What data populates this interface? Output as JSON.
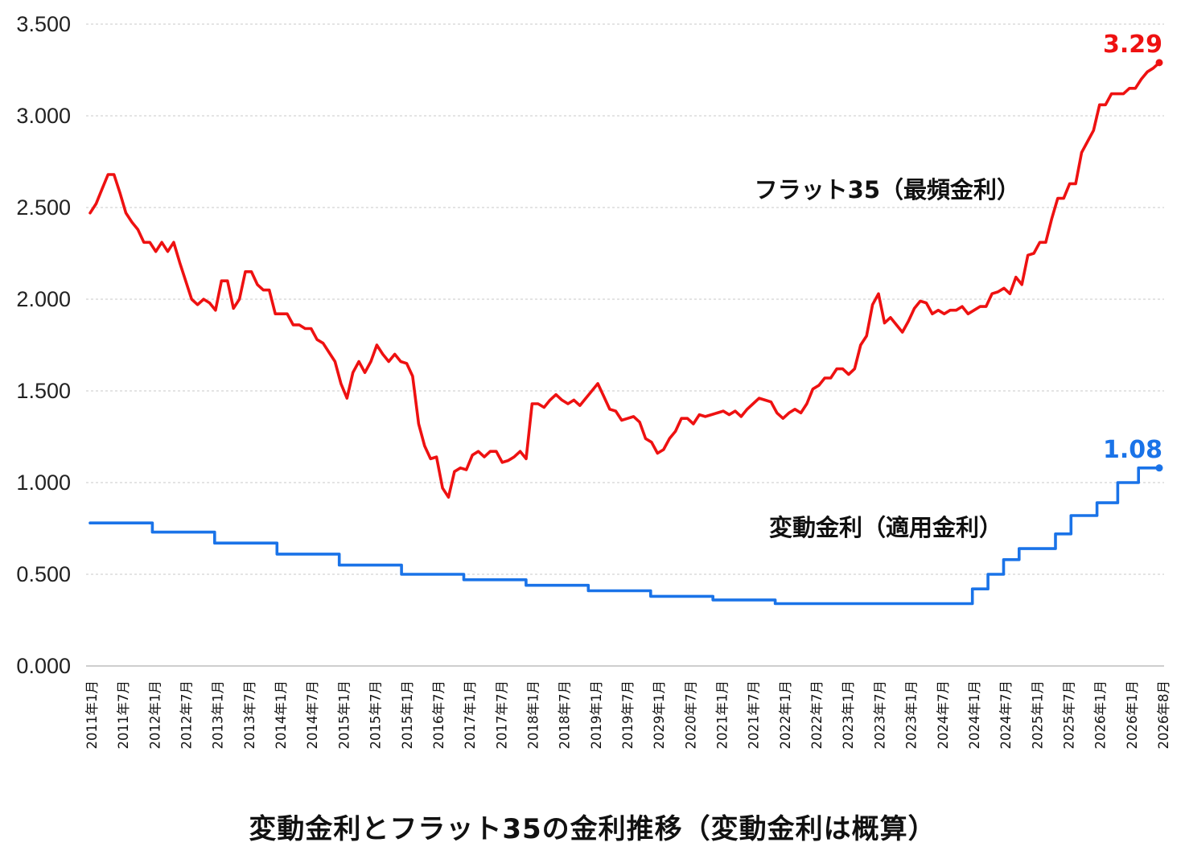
{
  "chart_data": {
    "type": "line",
    "title": "変動金利とフラット35の金利推移（変動金利は概算）",
    "ylim": [
      0,
      3.5
    ],
    "y_ticks": [
      "0.000",
      "0.500",
      "1.000",
      "1.500",
      "2.000",
      "2.500",
      "3.000",
      "3.500"
    ],
    "x_ticks": [
      "2011年1月",
      "2011年7月",
      "2012年1月",
      "2012年7月",
      "2013年1月",
      "2013年7月",
      "2014年1月",
      "2014年7月",
      "2015年1月",
      "2015年7月",
      "2015年1月",
      "2016年7月",
      "2017年1月",
      "2017年7月",
      "2018年1月",
      "2018年7月",
      "2019年1月",
      "2019年7月",
      "2029年1月",
      "2020年7月",
      "2021年1月",
      "2021年7月",
      "2022年1月",
      "2022年7月",
      "2023年1月",
      "2023年7月",
      "2023年1月",
      "2024年7月",
      "2024年1月",
      "2024年7月",
      "2025年1月",
      "2025年7月",
      "2026年1月",
      "2026年1月",
      "2026年8月"
    ],
    "grid": "horizontal-dashed",
    "series": [
      {
        "name": "フラット35（最頻金利）",
        "color": "#ee1111",
        "end_label": "3.29",
        "values": [
          2.47,
          2.52,
          2.6,
          2.68,
          2.68,
          2.58,
          2.47,
          2.42,
          2.38,
          2.31,
          2.31,
          2.26,
          2.31,
          2.26,
          2.31,
          2.2,
          2.1,
          2.0,
          1.97,
          2.0,
          1.98,
          1.94,
          2.1,
          2.1,
          1.95,
          2.0,
          2.15,
          2.15,
          2.08,
          2.05,
          2.05,
          1.92,
          1.92,
          1.92,
          1.86,
          1.86,
          1.84,
          1.84,
          1.78,
          1.76,
          1.71,
          1.66,
          1.54,
          1.46,
          1.6,
          1.66,
          1.6,
          1.66,
          1.75,
          1.7,
          1.66,
          1.7,
          1.66,
          1.65,
          1.58,
          1.32,
          1.2,
          1.13,
          1.14,
          0.97,
          0.92,
          1.06,
          1.08,
          1.07,
          1.15,
          1.17,
          1.14,
          1.17,
          1.17,
          1.11,
          1.12,
          1.14,
          1.17,
          1.13,
          1.43,
          1.43,
          1.41,
          1.45,
          1.48,
          1.45,
          1.43,
          1.45,
          1.42,
          1.46,
          1.5,
          1.54,
          1.47,
          1.4,
          1.39,
          1.34,
          1.35,
          1.36,
          1.33,
          1.24,
          1.22,
          1.16,
          1.18,
          1.24,
          1.28,
          1.35,
          1.35,
          1.32,
          1.37,
          1.36,
          1.37,
          1.38,
          1.39,
          1.37,
          1.39,
          1.36,
          1.4,
          1.43,
          1.46,
          1.45,
          1.44,
          1.38,
          1.35,
          1.38,
          1.4,
          1.38,
          1.43,
          1.51,
          1.53,
          1.57,
          1.57,
          1.62,
          1.62,
          1.59,
          1.62,
          1.75,
          1.8,
          1.97,
          2.03,
          1.87,
          1.9,
          1.86,
          1.82,
          1.88,
          1.95,
          1.99,
          1.98,
          1.92,
          1.94,
          1.92,
          1.94,
          1.94,
          1.96,
          1.92,
          1.94,
          1.96,
          1.96,
          2.03,
          2.04,
          2.06,
          2.03,
          2.12,
          2.08,
          2.24,
          2.25,
          2.31,
          2.31,
          2.44,
          2.55,
          2.55,
          2.63,
          2.63,
          2.8,
          2.86,
          2.92,
          3.06,
          3.06,
          3.12,
          3.12,
          3.12,
          3.15,
          3.15,
          3.2,
          3.24,
          3.26,
          3.29
        ]
      },
      {
        "name": "変動金利（適用金利）",
        "color": "#1a73e8",
        "end_label": "1.08",
        "values": [
          0.78,
          0.78,
          0.78,
          0.78,
          0.78,
          0.78,
          0.78,
          0.78,
          0.78,
          0.78,
          0.78,
          0.78,
          0.73,
          0.73,
          0.73,
          0.73,
          0.73,
          0.73,
          0.73,
          0.73,
          0.73,
          0.73,
          0.73,
          0.73,
          0.67,
          0.67,
          0.67,
          0.67,
          0.67,
          0.67,
          0.67,
          0.67,
          0.67,
          0.67,
          0.67,
          0.67,
          0.61,
          0.61,
          0.61,
          0.61,
          0.61,
          0.61,
          0.61,
          0.61,
          0.61,
          0.61,
          0.61,
          0.61,
          0.55,
          0.55,
          0.55,
          0.55,
          0.55,
          0.55,
          0.55,
          0.55,
          0.55,
          0.55,
          0.55,
          0.55,
          0.5,
          0.5,
          0.5,
          0.5,
          0.5,
          0.5,
          0.5,
          0.5,
          0.5,
          0.5,
          0.5,
          0.5,
          0.47,
          0.47,
          0.47,
          0.47,
          0.47,
          0.47,
          0.47,
          0.47,
          0.47,
          0.47,
          0.47,
          0.47,
          0.44,
          0.44,
          0.44,
          0.44,
          0.44,
          0.44,
          0.44,
          0.44,
          0.44,
          0.44,
          0.44,
          0.44,
          0.41,
          0.41,
          0.41,
          0.41,
          0.41,
          0.41,
          0.41,
          0.41,
          0.41,
          0.41,
          0.41,
          0.41,
          0.38,
          0.38,
          0.38,
          0.38,
          0.38,
          0.38,
          0.38,
          0.38,
          0.38,
          0.38,
          0.38,
          0.38,
          0.36,
          0.36,
          0.36,
          0.36,
          0.36,
          0.36,
          0.36,
          0.36,
          0.36,
          0.36,
          0.36,
          0.36,
          0.34,
          0.34,
          0.34,
          0.34,
          0.34,
          0.34,
          0.34,
          0.34,
          0.34,
          0.34,
          0.34,
          0.34,
          0.34,
          0.34,
          0.34,
          0.34,
          0.34,
          0.34,
          0.34,
          0.34,
          0.34,
          0.34,
          0.34,
          0.34,
          0.34,
          0.34,
          0.34,
          0.34,
          0.34,
          0.34,
          0.34,
          0.34,
          0.34,
          0.34,
          0.34,
          0.34,
          0.34,
          0.34,
          0.42,
          0.42,
          0.42,
          0.5,
          0.5,
          0.5,
          0.58,
          0.58,
          0.58,
          0.64,
          0.64,
          0.64,
          0.64,
          0.64,
          0.64,
          0.64,
          0.72,
          0.72,
          0.72,
          0.82,
          0.82,
          0.82,
          0.82,
          0.82,
          0.89,
          0.89,
          0.89,
          0.89,
          1.0,
          1.0,
          1.0,
          1.0,
          1.08,
          1.08,
          1.08,
          1.08,
          1.08
        ]
      }
    ]
  }
}
